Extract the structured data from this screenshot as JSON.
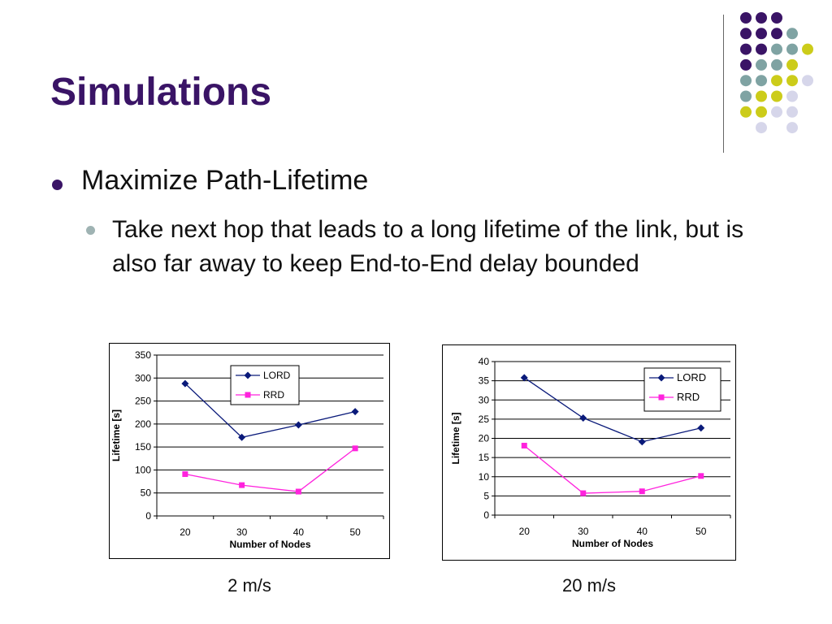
{
  "slide": {
    "title": "Simulations",
    "bullet1": "Maximize Path-Lifetime",
    "bullet2": "Take next hop that leads to a long lifetime of the link, but is also far away to keep End-to-End delay bounded"
  },
  "colors": {
    "title": "#3a1466",
    "lord": "#0a1a7a",
    "rrd": "#ff22dd",
    "dot_purple": "#3a1466",
    "dot_teal": "#7fa3a3",
    "dot_yellow": "#cccc1a",
    "dot_lavender": "#d6d6ea"
  },
  "chart_data": [
    {
      "type": "line",
      "caption": "2 m/s",
      "x": [
        20,
        30,
        40,
        50
      ],
      "xlabel": "Number of Nodes",
      "ylabel": "Lifetime [s]",
      "ylim": [
        0,
        350
      ],
      "yticks": [
        0,
        50,
        100,
        150,
        200,
        250,
        300,
        350
      ],
      "grid": true,
      "legend": "top-center",
      "series": [
        {
          "name": "LORD",
          "values": [
            288,
            171,
            198,
            227
          ]
        },
        {
          "name": "RRD",
          "values": [
            91,
            67,
            53,
            147
          ]
        }
      ]
    },
    {
      "type": "line",
      "caption": "20 m/s",
      "x": [
        20,
        30,
        40,
        50
      ],
      "xlabel": "Number of Nodes",
      "ylabel": "Lifetime [s]",
      "ylim": [
        0,
        40
      ],
      "yticks": [
        0,
        5,
        10,
        15,
        20,
        25,
        30,
        35,
        40
      ],
      "grid": true,
      "legend": "top-right",
      "series": [
        {
          "name": "LORD",
          "values": [
            35.8,
            25.3,
            19.1,
            22.7
          ]
        },
        {
          "name": "RRD",
          "values": [
            18.1,
            5.7,
            6.2,
            10.2
          ]
        }
      ]
    }
  ]
}
